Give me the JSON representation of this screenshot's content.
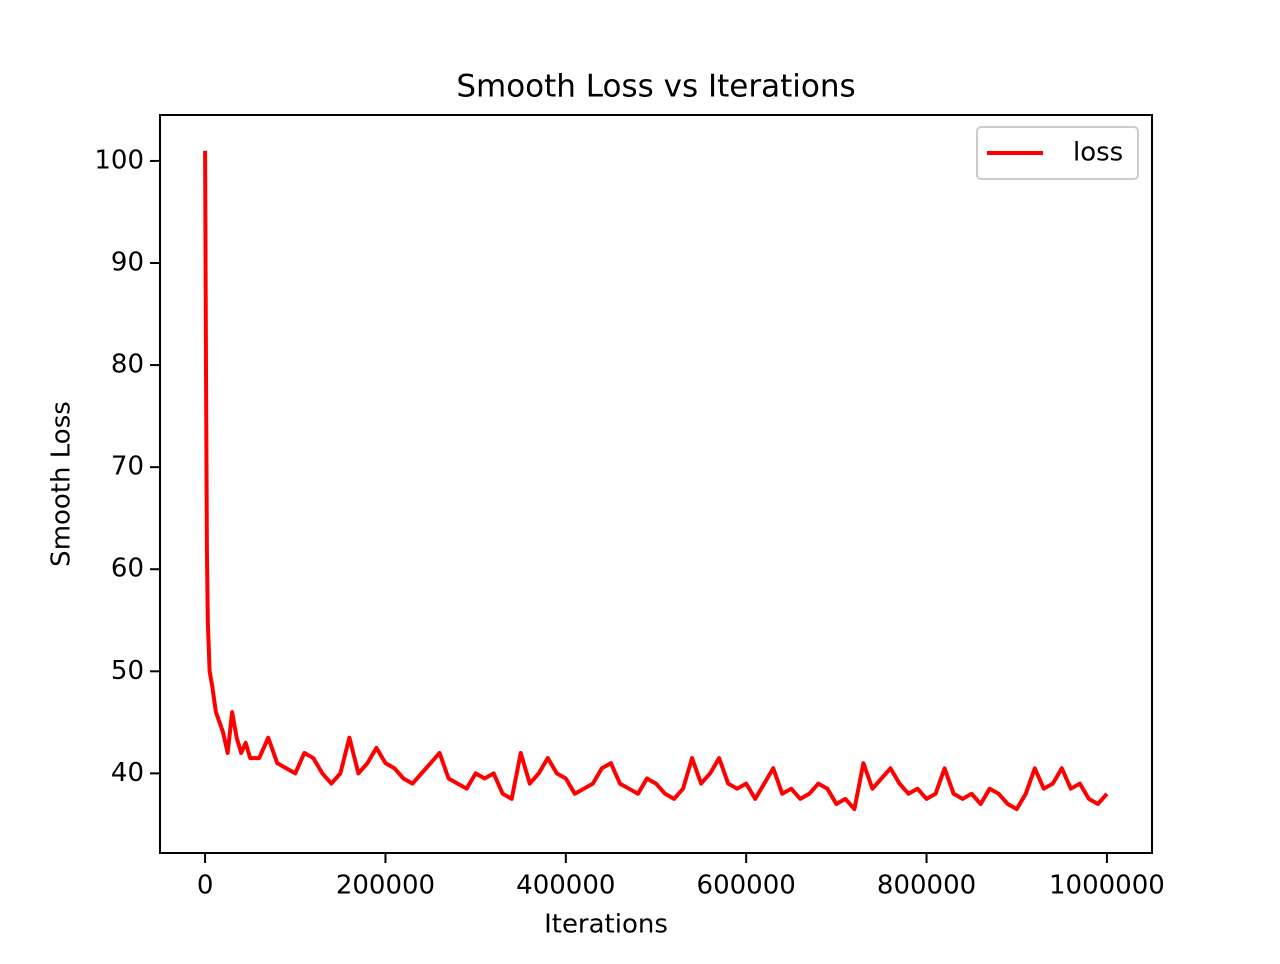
{
  "chart_data": {
    "type": "line",
    "title": "Smooth Loss vs Iterations",
    "x_label": "Iterations",
    "y_label": "Smooth Loss",
    "x": [
      0,
      1000,
      2000,
      3000,
      5000,
      8000,
      12000,
      16000,
      20000,
      25000,
      30000,
      35000,
      40000,
      45000,
      50000,
      60000,
      70000,
      80000,
      90000,
      100000,
      110000,
      120000,
      130000,
      140000,
      150000,
      160000,
      170000,
      180000,
      190000,
      200000,
      210000,
      220000,
      230000,
      240000,
      250000,
      260000,
      270000,
      280000,
      290000,
      300000,
      310000,
      320000,
      330000,
      340000,
      350000,
      360000,
      370000,
      380000,
      390000,
      400000,
      410000,
      420000,
      430000,
      440000,
      450000,
      460000,
      470000,
      480000,
      490000,
      500000,
      510000,
      520000,
      530000,
      540000,
      550000,
      560000,
      570000,
      580000,
      590000,
      600000,
      610000,
      620000,
      630000,
      640000,
      650000,
      660000,
      670000,
      680000,
      690000,
      700000,
      710000,
      720000,
      730000,
      740000,
      750000,
      760000,
      770000,
      780000,
      790000,
      800000,
      810000,
      820000,
      830000,
      840000,
      850000,
      860000,
      870000,
      880000,
      890000,
      900000,
      910000,
      920000,
      930000,
      940000,
      950000,
      960000,
      970000,
      980000,
      990000,
      1000000
    ],
    "series": [
      {
        "name": "loss",
        "color": "#ff0000",
        "values": [
          101,
          80,
          62,
          55,
          50,
          48.5,
          46,
          45,
          44,
          42,
          46,
          43.5,
          42,
          43,
          41.5,
          41.5,
          43.5,
          41,
          40.5,
          40,
          42,
          41.5,
          40,
          39,
          40,
          43.5,
          40,
          41,
          42.5,
          41,
          40.5,
          39.5,
          39,
          40,
          41,
          42,
          39.5,
          39,
          38.5,
          40,
          39.5,
          40,
          38,
          37.5,
          42,
          39,
          40,
          41.5,
          40,
          39.5,
          38,
          38.5,
          39,
          40.5,
          41,
          39,
          38.5,
          38,
          39.5,
          39,
          38,
          37.5,
          38.5,
          41.5,
          39,
          40,
          41.5,
          39,
          38.5,
          39,
          37.5,
          39,
          40.5,
          38,
          38.5,
          37.5,
          38,
          39,
          38.5,
          37,
          37.5,
          36.5,
          41,
          38.5,
          39.5,
          40.5,
          39,
          38,
          38.5,
          37.5,
          38,
          40.5,
          38,
          37.5,
          38,
          37,
          38.5,
          38,
          37,
          36.5,
          38,
          40.5,
          38.5,
          39,
          40.5,
          38.5,
          39,
          37.5,
          37,
          38
        ]
      }
    ],
    "xlim": [
      -50000,
      1050000
    ],
    "ylim": [
      32.2,
      104.5
    ],
    "xticks": [
      0,
      200000,
      400000,
      600000,
      800000,
      1000000
    ],
    "yticks": [
      40,
      50,
      60,
      70,
      80,
      90,
      100
    ],
    "legend": "upper right"
  }
}
